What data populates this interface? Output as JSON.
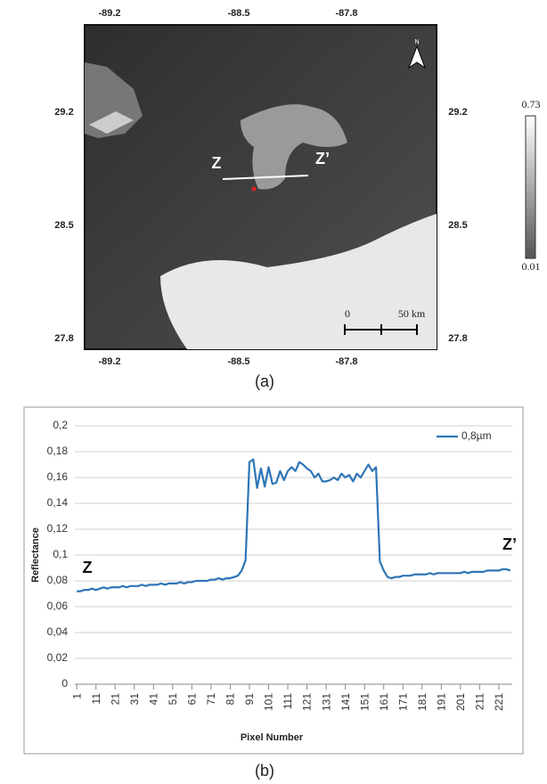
{
  "figure_a": {
    "lon_labels": [
      "-89.2",
      "-88.5",
      "-87.8"
    ],
    "lat_labels": [
      "29.2",
      "28.5",
      "27.8"
    ],
    "colorbar_labels": [
      "0.73",
      "0.01"
    ],
    "scale_labels": [
      "0",
      "50 km"
    ],
    "transect_labels": [
      "Z",
      "Z’"
    ],
    "north_label": "N",
    "caption": "(a)"
  },
  "chart_data": {
    "type": "line",
    "caption": "(b)",
    "x_label": "Pixel Number",
    "y_label": "Reflectance",
    "annotations": [
      "Z",
      "Z’"
    ],
    "legend": "top-right",
    "grid": true,
    "x": [
      1,
      3,
      5,
      7,
      9,
      11,
      13,
      15,
      17,
      19,
      21,
      23,
      25,
      27,
      29,
      31,
      33,
      35,
      37,
      39,
      41,
      43,
      45,
      47,
      49,
      51,
      53,
      55,
      57,
      59,
      61,
      63,
      65,
      67,
      69,
      71,
      73,
      75,
      77,
      79,
      81,
      83,
      85,
      87,
      89,
      91,
      93,
      95,
      97,
      99,
      101,
      103,
      105,
      107,
      109,
      111,
      113,
      115,
      117,
      119,
      121,
      123,
      125,
      127,
      129,
      131,
      133,
      135,
      137,
      139,
      141,
      143,
      145,
      147,
      149,
      151,
      153,
      155,
      157,
      159,
      161,
      163,
      165,
      167,
      169,
      171,
      173,
      175,
      177,
      179,
      181,
      183,
      185,
      187,
      189,
      191,
      193,
      195,
      197,
      199,
      201,
      203,
      205,
      207,
      209,
      211,
      213,
      215,
      217,
      219,
      221,
      223,
      225,
      227
    ],
    "series": [
      {
        "name": "0,8µm",
        "color": "#2e75b6",
        "values": [
          0.072,
          0.072,
          0.073,
          0.073,
          0.074,
          0.073,
          0.074,
          0.075,
          0.074,
          0.075,
          0.075,
          0.075,
          0.076,
          0.075,
          0.076,
          0.076,
          0.076,
          0.077,
          0.076,
          0.077,
          0.077,
          0.077,
          0.078,
          0.077,
          0.078,
          0.078,
          0.078,
          0.079,
          0.078,
          0.079,
          0.079,
          0.08,
          0.08,
          0.08,
          0.08,
          0.081,
          0.081,
          0.082,
          0.081,
          0.082,
          0.082,
          0.083,
          0.084,
          0.088,
          0.096,
          0.172,
          0.174,
          0.152,
          0.167,
          0.153,
          0.168,
          0.155,
          0.156,
          0.165,
          0.158,
          0.165,
          0.168,
          0.165,
          0.172,
          0.17,
          0.167,
          0.165,
          0.16,
          0.163,
          0.157,
          0.157,
          0.158,
          0.16,
          0.158,
          0.163,
          0.16,
          0.162,
          0.157,
          0.163,
          0.16,
          0.165,
          0.17,
          0.165,
          0.168,
          0.095,
          0.088,
          0.083,
          0.082,
          0.083,
          0.083,
          0.084,
          0.084,
          0.084,
          0.085,
          0.085,
          0.085,
          0.085,
          0.086,
          0.085,
          0.086,
          0.086,
          0.086,
          0.086,
          0.086,
          0.086,
          0.086,
          0.087,
          0.086,
          0.087,
          0.087,
          0.087,
          0.087,
          0.088,
          0.088,
          0.088,
          0.088,
          0.089,
          0.089,
          0.088
        ]
      }
    ],
    "xlim": [
      0,
      228
    ],
    "xticks": [
      1,
      11,
      21,
      31,
      41,
      51,
      61,
      71,
      81,
      91,
      101,
      111,
      121,
      131,
      141,
      151,
      161,
      171,
      181,
      191,
      201,
      211,
      221
    ],
    "ylim": [
      0,
      0.2
    ],
    "yticks": [
      0,
      {
        "value": 0.02,
        "label": "0,02"
      },
      {
        "value": 0.04,
        "label": "0,04"
      },
      {
        "value": 0.06,
        "label": "0,06"
      },
      {
        "value": 0.08,
        "label": "0,08"
      },
      {
        "value": 0.1,
        "label": "0,1"
      },
      {
        "value": 0.12,
        "label": "0,12"
      },
      {
        "value": 0.14,
        "label": "0,14"
      },
      {
        "value": 0.16,
        "label": "0,16"
      },
      {
        "value": 0.18,
        "label": "0,18"
      },
      {
        "value": 0.2,
        "label": "0,2"
      }
    ]
  }
}
